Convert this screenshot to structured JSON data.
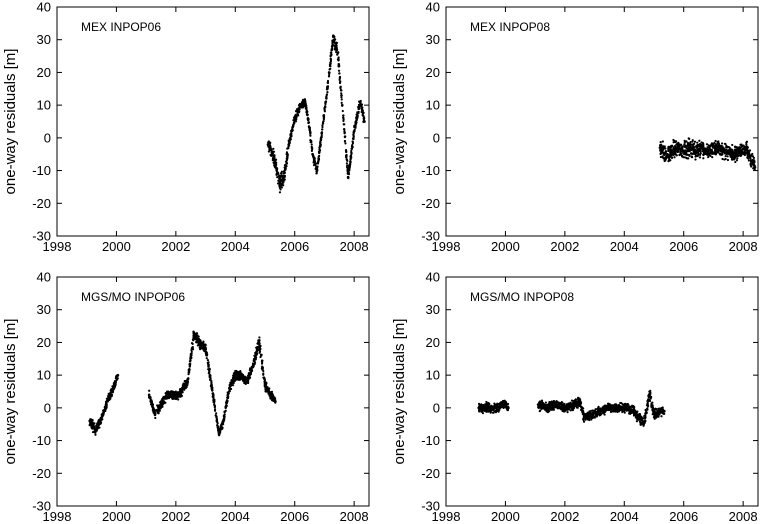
{
  "chart_data": [
    {
      "type": "scatter",
      "title": "MEX INPOP06",
      "xlabel": "",
      "ylabel": "one-way residuals [m]",
      "xlim": [
        1998,
        2008.5
      ],
      "ylim": [
        -30,
        40
      ],
      "xticks": [
        "1998",
        "2000",
        "2002",
        "2004",
        "2006",
        "2008"
      ],
      "yticks": [
        "-30",
        "-20",
        "-10",
        "0",
        "10",
        "20",
        "30",
        "40"
      ],
      "grid": false,
      "series": [
        {
          "x": [
            2005.1,
            2005.3,
            2005.5,
            2005.65,
            2005.8,
            2006.0,
            2006.2,
            2006.35,
            2006.5,
            2006.6,
            2006.75,
            2007.1,
            2007.3,
            2007.45,
            2007.6,
            2007.8,
            2008.0,
            2008.2,
            2008.35
          ],
          "y": [
            -2,
            -6,
            -14,
            -12,
            -2,
            6,
            10,
            11,
            3,
            -5,
            -10,
            15,
            31,
            26,
            10,
            -12,
            2,
            11,
            5
          ],
          "spread": [
            3,
            3,
            4,
            4,
            2,
            2,
            2,
            2,
            2,
            2,
            2,
            2,
            3,
            3,
            2,
            2,
            2,
            2,
            2
          ]
        }
      ]
    },
    {
      "type": "scatter",
      "title": "MEX INPOP08",
      "xlabel": "",
      "ylabel": "one-way residuals [m]",
      "xlim": [
        1998,
        2008.5
      ],
      "ylim": [
        -30,
        40
      ],
      "xticks": [
        "1998",
        "2000",
        "2002",
        "2004",
        "2006",
        "2008"
      ],
      "yticks": [
        "-30",
        "-20",
        "-10",
        "0",
        "10",
        "20",
        "30",
        "40"
      ],
      "grid": false,
      "series": [
        {
          "x": [
            2005.2,
            2005.4,
            2005.6,
            2005.8,
            2006.0,
            2006.2,
            2006.4,
            2006.6,
            2006.75,
            2007.1,
            2007.3,
            2007.5,
            2007.7,
            2007.9,
            2008.1,
            2008.3,
            2008.4
          ],
          "y": [
            -3,
            -6,
            -4,
            -3,
            -4,
            -3,
            -4,
            -3,
            -4,
            -3,
            -4,
            -4,
            -5,
            -4,
            -3,
            -7,
            -9
          ],
          "spread": [
            4,
            4,
            4,
            3,
            3,
            4,
            3,
            3,
            3,
            3,
            3,
            3,
            3,
            3,
            3,
            3,
            3
          ]
        }
      ]
    },
    {
      "type": "scatter",
      "title": "MGS/MO INPOP06",
      "xlabel": "",
      "ylabel": "one-way residuals [m]",
      "xlim": [
        1998,
        2008.5
      ],
      "ylim": [
        -30,
        40
      ],
      "xticks": [
        "1998",
        "2000",
        "2002",
        "2004",
        "2006",
        "2008"
      ],
      "yticks": [
        "-30",
        "-20",
        "-10",
        "0",
        "10",
        "20",
        "30",
        "40"
      ],
      "grid": false,
      "series": [
        {
          "x": [
            1999.1,
            1999.3,
            1999.5,
            1999.7,
            1999.9,
            2000.05,
            2001.1,
            2001.3,
            2001.5,
            2001.7,
            2001.9,
            2002.1,
            2002.4,
            2002.6,
            2002.8,
            2003.0,
            2003.2,
            2003.45,
            2003.6,
            2003.8,
            2004.0,
            2004.2,
            2004.4,
            2004.6,
            2004.8,
            2005.0,
            2005.2,
            2005.35
          ],
          "y": [
            -4,
            -7,
            -3,
            2,
            6,
            10,
            4,
            -2,
            1,
            4,
            4,
            4,
            8,
            22,
            20,
            18,
            7,
            -8,
            -4,
            6,
            10,
            10,
            8,
            13,
            20,
            7,
            4,
            2
          ],
          "spread": [
            2,
            2,
            2,
            2,
            2,
            2,
            2,
            2,
            2,
            2,
            2,
            2,
            2,
            3,
            2,
            2,
            2,
            2,
            2,
            2,
            2,
            2,
            2,
            2,
            3,
            2,
            2,
            2
          ]
        }
      ]
    },
    {
      "type": "scatter",
      "title": "MGS/MO INPOP08",
      "xlabel": "",
      "ylabel": "one-way residuals [m]",
      "xlim": [
        1998,
        2008.5
      ],
      "ylim": [
        -30,
        40
      ],
      "xticks": [
        "1998",
        "2000",
        "2002",
        "2004",
        "2006",
        "2008"
      ],
      "yticks": [
        "-30",
        "-20",
        "-10",
        "0",
        "10",
        "20",
        "30",
        "40"
      ],
      "grid": false,
      "series": [
        {
          "x": [
            1999.1,
            1999.4,
            1999.7,
            2000.0,
            2000.1,
            2001.1,
            2001.4,
            2001.7,
            2002.0,
            2002.3,
            2002.5,
            2002.65,
            2002.9,
            2003.2,
            2003.5,
            2003.8,
            2004.1,
            2004.3,
            2004.5,
            2004.65,
            2004.85,
            2005.0,
            2005.2,
            2005.35
          ],
          "y": [
            0,
            0,
            0,
            1,
            0,
            1,
            0,
            1,
            0,
            1,
            2,
            -3,
            -2,
            -1,
            0,
            0,
            0,
            -1,
            -3,
            -5,
            4,
            -2,
            -1,
            -1
          ],
          "spread": [
            2,
            2,
            2,
            2,
            2,
            2,
            2,
            2,
            2,
            2,
            2,
            2,
            2,
            2,
            2,
            2,
            2,
            2,
            2,
            2,
            3,
            2,
            2,
            2
          ]
        }
      ]
    }
  ]
}
